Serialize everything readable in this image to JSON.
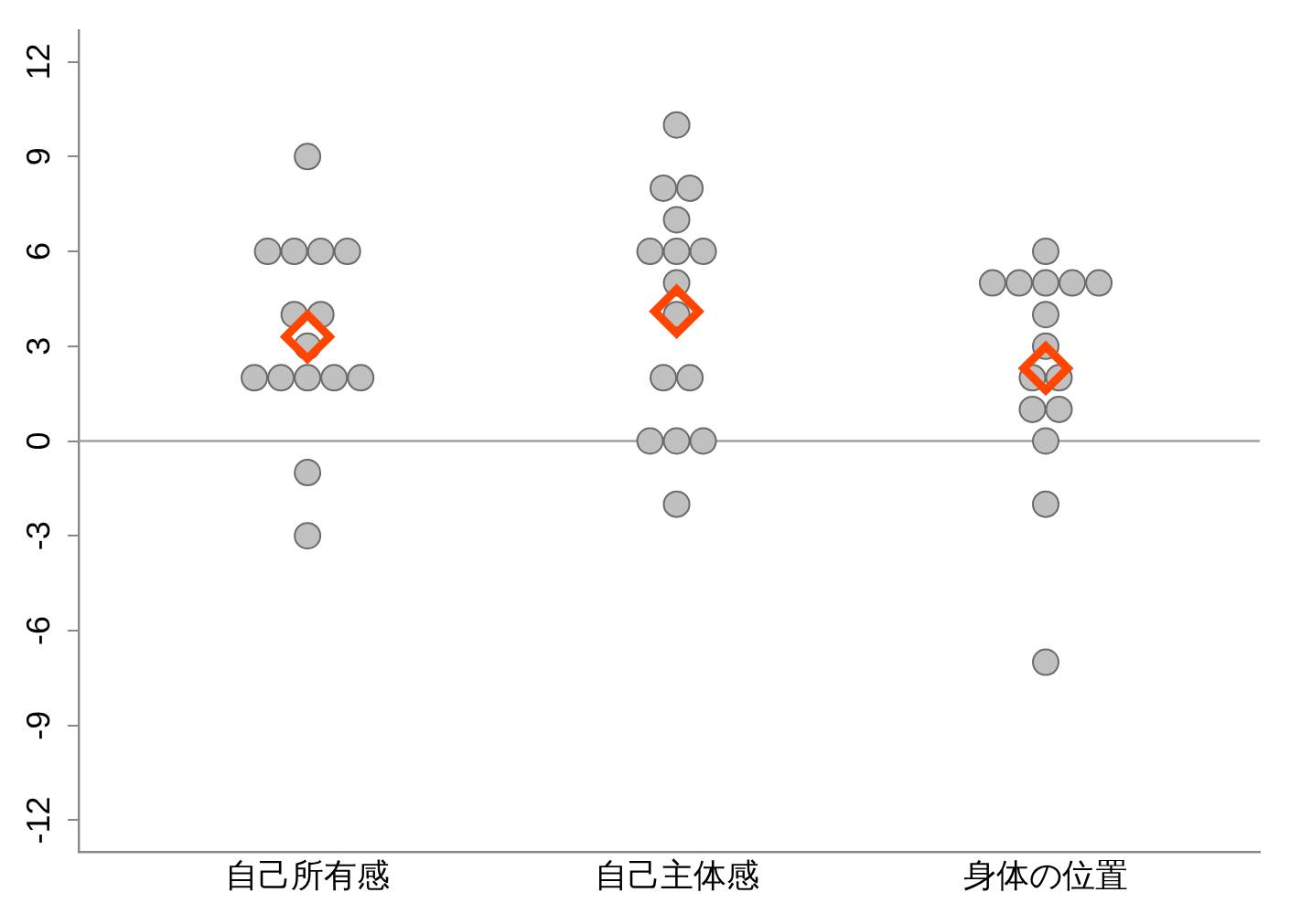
{
  "chart_data": {
    "type": "scatter",
    "categories": [
      "自己所有感",
      "自己主体感",
      "身体の位置"
    ],
    "series": [
      {
        "color": "#c0c0c0",
        "marker": "circle",
        "x": [
          "自己所有感",
          "自己所有感",
          "自己所有感",
          "自己所有感",
          "自己所有感",
          "自己所有感",
          "自己所有感",
          "自己所有感",
          "自己所有感",
          "自己所有感",
          "自己所有感",
          "自己所有感",
          "自己所有感",
          "自己所有感",
          "自己所有感",
          "自己主体感",
          "自己主体感",
          "自己主体感",
          "自己主体感",
          "自己主体感",
          "自己主体感",
          "自己主体感",
          "自己主体感",
          "自己主体感",
          "自己主体感",
          "自己主体感",
          "自己主体感",
          "自己主体感",
          "自己主体感",
          "自己主体感",
          "身体の位置",
          "身体の位置",
          "身体の位置",
          "身体の位置",
          "身体の位置",
          "身体の位置",
          "身体の位置",
          "身体の位置",
          "身体の位置",
          "身体の位置",
          "身体の位置",
          "身体の位置",
          "身体の位置",
          "身体の位置",
          "身体の位置"
        ],
        "values": [
          9,
          6,
          6,
          6,
          6,
          4,
          4,
          3,
          2,
          2,
          2,
          2,
          2,
          -1,
          -3,
          10,
          8,
          8,
          7,
          6,
          6,
          6,
          5,
          4,
          2,
          2,
          0,
          0,
          0,
          -2,
          6,
          5,
          5,
          5,
          5,
          5,
          4,
          3,
          2,
          2,
          1,
          1,
          0,
          -2,
          -7
        ]
      },
      {
        "color": "#ff4500",
        "marker": "diamond",
        "x": [
          "自己所有感",
          "自己主体感",
          "身体の位置"
        ],
        "values": [
          3.3,
          4.1,
          2.3
        ]
      }
    ],
    "ylim": [
      -13,
      13
    ],
    "yticks": [
      -12,
      -9,
      -6,
      -3,
      0,
      3,
      6,
      9,
      12
    ],
    "ref_lines": [
      {
        "axis": "y",
        "value": 0,
        "color": "#a0a0a0"
      }
    ],
    "grid": false
  }
}
